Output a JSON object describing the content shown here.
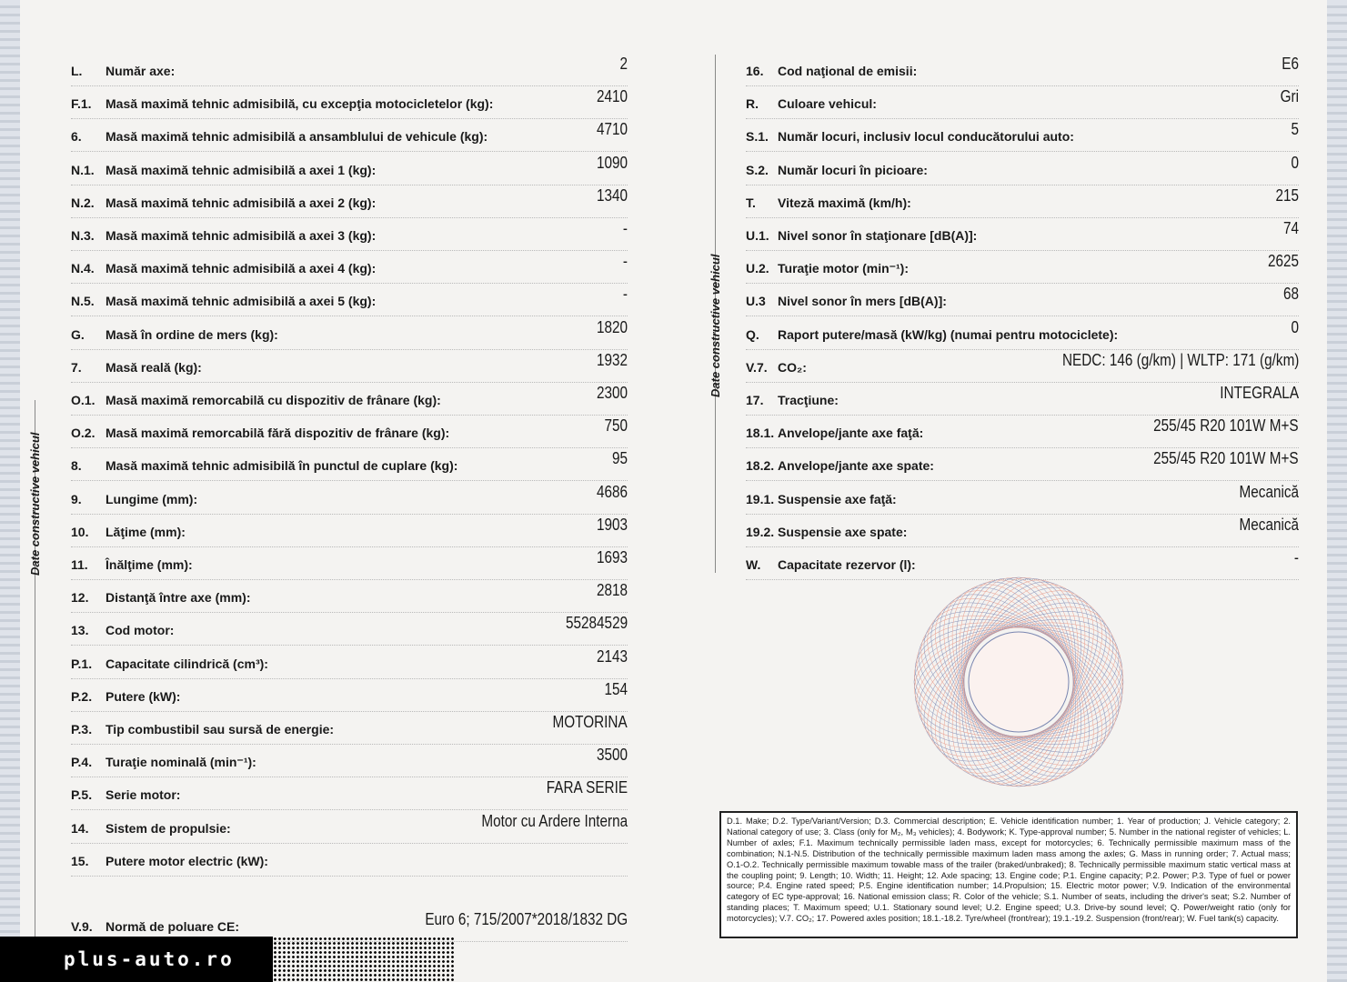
{
  "side_label": "Date constructive vehicul",
  "left_rows": [
    {
      "code": "L.",
      "label": "Număr axe:",
      "value": "2"
    },
    {
      "code": "F.1.",
      "label": "Masă maximă tehnic admisibilă, cu excepţia motocicletelor (kg):",
      "value": "2410"
    },
    {
      "code": "6.",
      "label": "Masă maximă tehnic admisibilă a ansamblului de vehicule (kg):",
      "value": "4710"
    },
    {
      "code": "N.1.",
      "label": "Masă maximă tehnic admisibilă a axei 1 (kg):",
      "value": "1090"
    },
    {
      "code": "N.2.",
      "label": "Masă maximă tehnic admisibilă a axei 2 (kg):",
      "value": "1340"
    },
    {
      "code": "N.3.",
      "label": "Masă maximă tehnic admisibilă a axei 3 (kg):",
      "value": "-"
    },
    {
      "code": "N.4.",
      "label": "Masă maximă tehnic admisibilă a axei 4 (kg):",
      "value": "-"
    },
    {
      "code": "N.5.",
      "label": "Masă maximă tehnic admisibilă a axei 5 (kg):",
      "value": "-"
    },
    {
      "code": "G.",
      "label": "Masă în ordine de mers (kg):",
      "value": "1820"
    },
    {
      "code": "7.",
      "label": "Masă reală (kg):",
      "value": "1932"
    },
    {
      "code": "O.1.",
      "label": "Masă maximă remorcabilă cu dispozitiv de frânare (kg):",
      "value": "2300"
    },
    {
      "code": "O.2.",
      "label": "Masă maximă remorcabilă fără dispozitiv de frânare (kg):",
      "value": "750"
    },
    {
      "code": "8.",
      "label": "Masă maximă tehnic admisibilă în punctul de cuplare (kg):",
      "value": "95"
    },
    {
      "code": "9.",
      "label": "Lungime (mm):",
      "value": "4686"
    },
    {
      "code": "10.",
      "label": "Lăţime (mm):",
      "value": "1903"
    },
    {
      "code": "11.",
      "label": "Înălţime (mm):",
      "value": "1693"
    },
    {
      "code": "12.",
      "label": "Distanţă între axe (mm):",
      "value": "2818"
    },
    {
      "code": "13.",
      "label": "Cod motor:",
      "value": "55284529"
    },
    {
      "code": "P.1.",
      "label": "Capacitate cilindrică (cm³):",
      "value": "2143"
    },
    {
      "code": "P.2.",
      "label": "Putere (kW):",
      "value": "154"
    },
    {
      "code": "P.3.",
      "label": "Tip combustibil sau sursă de energie:",
      "value": "MOTORINA"
    },
    {
      "code": "P.4.",
      "label": "Turaţie nominală (min⁻¹):",
      "value": "3500"
    },
    {
      "code": "P.5.",
      "label": "Serie motor:",
      "value": "FARA SERIE"
    },
    {
      "code": "14.",
      "label": "Sistem de propulsie:",
      "value": "Motor cu Ardere Interna"
    },
    {
      "code": "15.",
      "label": "Putere motor electric (kW):",
      "value": ""
    },
    {
      "code": "V.9.",
      "label": "Normă de poluare CE:",
      "value": "Euro 6; 715/2007*2018/1832 DG"
    }
  ],
  "right_rows": [
    {
      "code": "16.",
      "label": "Cod naţional de emisii:",
      "value": "E6"
    },
    {
      "code": "R.",
      "label": "Culoare vehicul:",
      "value": "Gri"
    },
    {
      "code": "S.1.",
      "label": "Număr locuri, inclusiv locul conducătorului auto:",
      "value": "5"
    },
    {
      "code": "S.2.",
      "label": "Număr locuri în picioare:",
      "value": "0"
    },
    {
      "code": "T.",
      "label": "Viteză maximă (km/h):",
      "value": "215"
    },
    {
      "code": "U.1.",
      "label": "Nivel sonor în staţionare [dB(A)]:",
      "value": "74"
    },
    {
      "code": "U.2.",
      "label": "Turaţie motor (min⁻¹):",
      "value": "2625"
    },
    {
      "code": "U.3",
      "label": "Nivel sonor în mers [dB(A)]:",
      "value": "68"
    },
    {
      "code": "Q.",
      "label": "Raport putere/masă (kW/kg) (numai pentru motociclete):",
      "value": "0"
    },
    {
      "code": "V.7.",
      "label": "CO₂:",
      "value": "NEDC: 146 (g/km) | WLTP: 171 (g/km)"
    },
    {
      "code": "17.",
      "label": "Tracţiune:",
      "value": "INTEGRALA"
    },
    {
      "code": "18.1.",
      "label": "Anvelope/jante axe faţă:",
      "value": "255/45 R20 101W M+S"
    },
    {
      "code": "18.2.",
      "label": "Anvelope/jante axe spate:",
      "value": "255/45 R20 101W M+S"
    },
    {
      "code": "19.1.",
      "label": "Suspensie axe faţă:",
      "value": "Mecanică"
    },
    {
      "code": "19.2.",
      "label": "Suspensie axe spate:",
      "value": "Mecanică"
    },
    {
      "code": "W.",
      "label": "Capacitate rezervor (l):",
      "value": "-"
    }
  ],
  "legend": "D.1. Make; D.2. Type/Variant/Version; D.3. Commercial description; E. Vehicle identification number; 1. Year of production; J. Vehicle category; 2. National category of use; 3. Class (only for M₂, M₃ vehicles); 4. Bodywork; K. Type-approval number; 5. Number in the national register of vehicles; L. Number of axles; F.1. Maximum technically permissible laden mass, except for motorcycles; 6. Technically permissible maximum mass of the combination; N.1-N.5. Distribution of the technically permissible maximum laden mass among the axles; G. Mass in running order; 7. Actual mass; O.1-O.2. Technically permissible maximum towable mass of the trailer (braked/unbraked); 8. Technically permissible maximum static vertical mass at the coupling point; 9. Length; 10. Width; 11. Height; 12. Axle spacing; 13. Engine code; P.1. Engine capacity; P.2. Power; P.3. Type of fuel or power source; P.4. Engine rated speed; P.5. Engine identification number; 14.Propulsion; 15. Electric motor power; V.9. Indication of the environmental category of EC type-approval; 16. National emission class; R. Color of the vehicle; S.1. Number of seats, including the driver's seat; S.2. Number of standing places; T. Maximum speed; U.1. Stationary sound level; U.2. Engine speed; U.3. Drive-by sound level; Q. Power/weight ratio (only for motorcycles); V.7. CO₂; 17. Powered axles position; 18.1.-18.2. Tyre/wheel (front/rear); 19.1.-19.2. Suspension (front/rear); W. Fuel tank(s) capacity.",
  "watermark": "plus-auto.ro"
}
